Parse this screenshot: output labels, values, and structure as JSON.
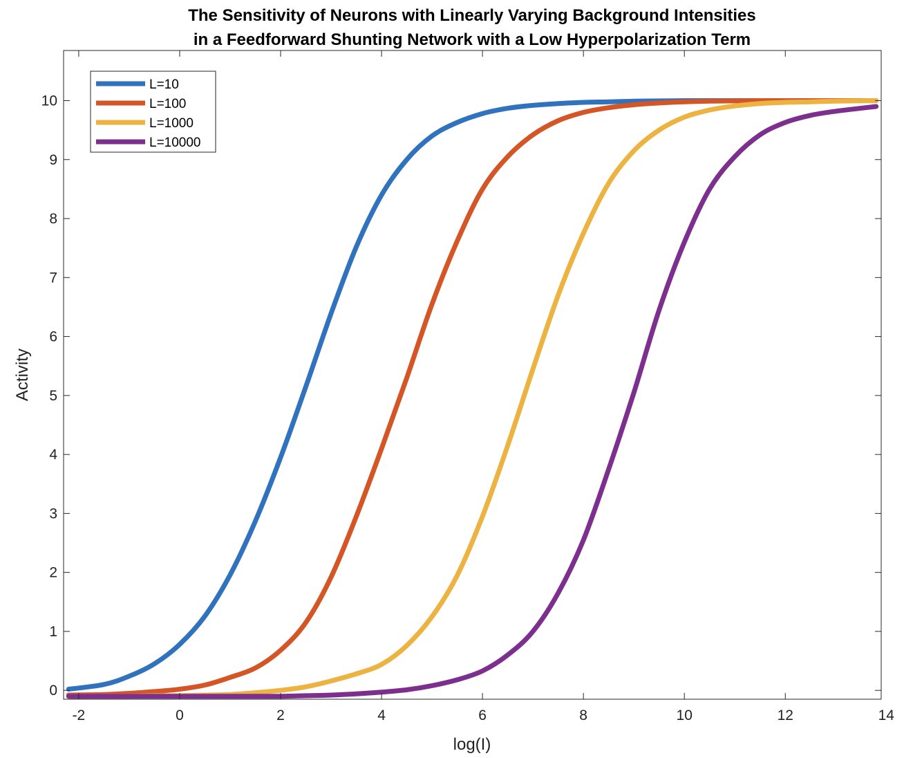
{
  "chart_data": {
    "type": "line",
    "title": [
      "The Sensitivity of Neurons with Linearly Varying Background Intensities",
      "in a Feedforward Shunting Network with a Low Hyperpolarization Term"
    ],
    "xlabel": "log(I)",
    "ylabel": "Activity",
    "xlim": [
      -2.3,
      13.9
    ],
    "ylim": [
      -0.15,
      10.85
    ],
    "xticks": [
      -2,
      0,
      2,
      4,
      6,
      8,
      10,
      12,
      14
    ],
    "xtick_labels": [
      "-2",
      "0",
      "2",
      "4",
      "6",
      "8",
      "10",
      "12",
      "14"
    ],
    "yticks": [
      0,
      1,
      2,
      3,
      4,
      5,
      6,
      7,
      8,
      9,
      10
    ],
    "ytick_labels": [
      "0",
      "1",
      "2",
      "3",
      "4",
      "5",
      "6",
      "7",
      "8",
      "9",
      "10"
    ],
    "grid": false,
    "legend_position": "top-left",
    "colors": {
      "L=10": "#3072BD",
      "L=100": "#D45525",
      "L=1000": "#EDB342",
      "L=10000": "#7D2F8E"
    },
    "x": [
      -2.2,
      -1.5,
      -1.0,
      -0.5,
      0.0,
      0.5,
      1.0,
      1.5,
      2.0,
      2.5,
      3.0,
      3.5,
      4.0,
      4.5,
      5.0,
      5.5,
      6.0,
      6.5,
      7.0,
      7.5,
      8.0,
      8.5,
      9.0,
      9.5,
      10.0,
      10.5,
      11.0,
      11.5,
      12.0,
      12.5,
      13.0,
      13.8
    ],
    "series": [
      {
        "name": "L=10",
        "values": [
          0.02,
          0.1,
          0.24,
          0.45,
          0.78,
          1.26,
          1.96,
          2.87,
          3.95,
          5.15,
          6.39,
          7.52,
          8.4,
          9.0,
          9.4,
          9.63,
          9.78,
          9.87,
          9.92,
          9.95,
          9.97,
          9.98,
          9.99,
          9.995,
          10.0,
          10.0,
          10.0,
          10.0,
          10.0,
          10.0,
          10.0,
          10.0
        ]
      },
      {
        "name": "L=100",
        "values": [
          -0.08,
          -0.07,
          -0.05,
          -0.02,
          0.02,
          0.09,
          0.22,
          0.38,
          0.68,
          1.15,
          1.92,
          2.95,
          4.1,
          5.3,
          6.55,
          7.62,
          8.5,
          9.05,
          9.42,
          9.66,
          9.8,
          9.88,
          9.93,
          9.96,
          9.98,
          9.99,
          9.995,
          10.0,
          10.0,
          10.0,
          10.0,
          10.0
        ]
      },
      {
        "name": "L=1000",
        "values": [
          -0.1,
          -0.1,
          -0.1,
          -0.09,
          -0.09,
          -0.08,
          -0.07,
          -0.04,
          0.0,
          0.06,
          0.16,
          0.28,
          0.44,
          0.76,
          1.25,
          1.95,
          2.95,
          4.15,
          5.45,
          6.7,
          7.75,
          8.6,
          9.15,
          9.5,
          9.72,
          9.84,
          9.91,
          9.95,
          9.97,
          9.98,
          9.99,
          10.0
        ]
      },
      {
        "name": "L=10000",
        "values": [
          -0.1,
          -0.1,
          -0.1,
          -0.1,
          -0.1,
          -0.1,
          -0.1,
          -0.1,
          -0.1,
          -0.09,
          -0.08,
          -0.06,
          -0.03,
          0.01,
          0.08,
          0.18,
          0.33,
          0.6,
          1.0,
          1.65,
          2.55,
          3.75,
          5.05,
          6.45,
          7.6,
          8.5,
          9.05,
          9.42,
          9.63,
          9.75,
          9.82,
          9.9
        ]
      }
    ]
  }
}
